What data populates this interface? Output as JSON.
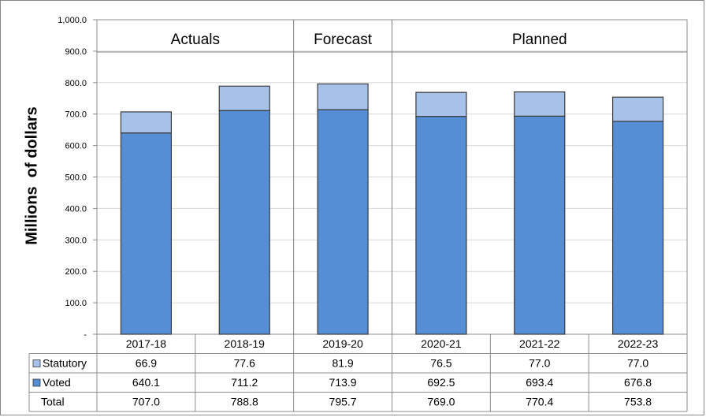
{
  "chart_data": {
    "type": "bar",
    "stacked": true,
    "ylabel": "Millions  of dollars",
    "ylim": [
      0,
      1000
    ],
    "yticks": [
      {
        "value": 0,
        "label": "-"
      },
      {
        "value": 100,
        "label": "100.0"
      },
      {
        "value": 200,
        "label": "200.0"
      },
      {
        "value": 300,
        "label": "300.0"
      },
      {
        "value": 400,
        "label": "400.0"
      },
      {
        "value": 500,
        "label": "500.0"
      },
      {
        "value": 600,
        "label": "600.0"
      },
      {
        "value": 700,
        "label": "700.0"
      },
      {
        "value": 800,
        "label": "800.0"
      },
      {
        "value": 900,
        "label": "900.0"
      },
      {
        "value": 1000,
        "label": "1,000.0"
      }
    ],
    "categories": [
      "2017-18",
      "2018-19",
      "2019-20",
      "2020-21",
      "2021-22",
      "2022-23"
    ],
    "series": [
      {
        "name": "Statutory",
        "color": "#a6c2e8",
        "values": [
          66.9,
          77.6,
          81.9,
          76.5,
          77.0,
          77.0
        ],
        "labels": [
          "66.9",
          "77.6",
          "81.9",
          "76.5",
          "77.0",
          "77.0"
        ]
      },
      {
        "name": "Voted",
        "color": "#558ed5",
        "values": [
          640.1,
          711.2,
          713.9,
          692.5,
          693.4,
          676.8
        ],
        "labels": [
          "640.1",
          "711.2",
          "713.9",
          "692.5",
          "693.4",
          "676.8"
        ]
      }
    ],
    "totals": {
      "name": "Total",
      "labels": [
        "707.0",
        "788.8",
        "795.7",
        "769.0",
        "770.4",
        "753.8"
      ]
    },
    "periods": [
      {
        "label": "Actuals",
        "count": 2
      },
      {
        "label": "Forecast",
        "count": 1
      },
      {
        "label": "Planned",
        "count": 3
      }
    ],
    "grid": true,
    "legend": "data-table"
  }
}
